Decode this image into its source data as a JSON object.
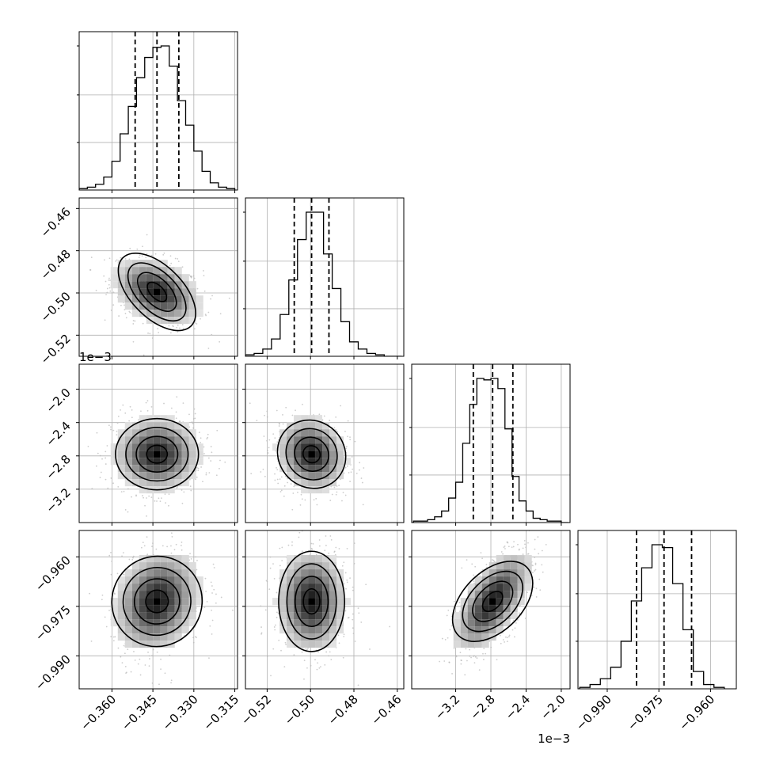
{
  "chart_data": {
    "type": "corner",
    "parameters": [
      {
        "range": [
          -0.372,
          -0.314
        ],
        "ticks": [
          -0.36,
          -0.345,
          -0.33,
          -0.315
        ],
        "tick_labels": [
          "−0.360",
          "−0.345",
          "−0.330",
          "−0.315"
        ],
        "offset_text": "",
        "quantiles": [
          -0.3515,
          -0.3435,
          -0.3355
        ],
        "hist_x": [
          -0.3705,
          -0.3675,
          -0.3645,
          -0.3615,
          -0.3585,
          -0.3555,
          -0.3525,
          -0.3495,
          -0.3465,
          -0.3435,
          -0.3405,
          -0.3375,
          -0.3345,
          -0.3315,
          -0.3285,
          -0.3255,
          -0.3225,
          -0.3195,
          -0.3165
        ],
        "hist_counts": [
          0.01,
          0.02,
          0.04,
          0.09,
          0.2,
          0.39,
          0.58,
          0.78,
          0.92,
          0.99,
          1.0,
          0.86,
          0.62,
          0.45,
          0.27,
          0.13,
          0.05,
          0.02,
          0.01
        ]
      },
      {
        "range": [
          -0.53,
          -0.457
        ],
        "ticks": [
          -0.52,
          -0.5,
          -0.48,
          -0.46
        ],
        "tick_labels": [
          "−0.52",
          "−0.50",
          "−0.48",
          "−0.46"
        ],
        "offset_text": "",
        "quantiles": [
          -0.5075,
          -0.4995,
          -0.4915
        ],
        "hist_x": [
          -0.528,
          -0.524,
          -0.52,
          -0.516,
          -0.512,
          -0.508,
          -0.504,
          -0.5,
          -0.496,
          -0.492,
          -0.488,
          -0.484,
          -0.48,
          -0.476,
          -0.472,
          -0.468,
          -0.464,
          -0.46
        ],
        "hist_counts": [
          0.01,
          0.02,
          0.05,
          0.12,
          0.29,
          0.53,
          0.81,
          1.0,
          1.0,
          0.71,
          0.47,
          0.24,
          0.1,
          0.05,
          0.02,
          0.01,
          0.0,
          0.0
        ]
      },
      {
        "range": [
          -3.7,
          -1.9
        ],
        "ticks": [
          -3.2,
          -2.8,
          -2.4,
          -2.0
        ],
        "tick_labels": [
          "−3.2",
          "−2.8",
          "−2.4",
          "−2.0"
        ],
        "offset_text": "1e−3",
        "quantiles": [
          -3.0,
          -2.78,
          -2.55
        ],
        "hist_x": [
          -3.64,
          -3.56,
          -3.48,
          -3.4,
          -3.32,
          -3.24,
          -3.16,
          -3.08,
          -3.0,
          -2.92,
          -2.84,
          -2.76,
          -2.68,
          -2.6,
          -2.52,
          -2.44,
          -2.36,
          -2.28,
          -2.2,
          -2.12,
          -2.04,
          -1.96
        ],
        "hist_counts": [
          0.01,
          0.01,
          0.02,
          0.04,
          0.08,
          0.17,
          0.28,
          0.55,
          0.82,
          1.0,
          0.99,
          1.0,
          0.93,
          0.65,
          0.32,
          0.15,
          0.08,
          0.03,
          0.02,
          0.01,
          0.01,
          0.0
        ],
        "hist_step_style": "wide"
      },
      {
        "range": [
          -0.9985,
          -0.9525
        ],
        "ticks": [
          -0.99,
          -0.975,
          -0.96
        ],
        "tick_labels": [
          "−0.990",
          "−0.975",
          "−0.960"
        ],
        "offset_text": "",
        "quantiles": [
          -0.9815,
          -0.9735,
          -0.9655
        ],
        "hist_x": [
          -0.9965,
          -0.9935,
          -0.9905,
          -0.9875,
          -0.9845,
          -0.9815,
          -0.9785,
          -0.9755,
          -0.9725,
          -0.9695,
          -0.9665,
          -0.9635,
          -0.9605,
          -0.9575
        ],
        "hist_counts": [
          0.01,
          0.03,
          0.07,
          0.15,
          0.33,
          0.61,
          0.84,
          1.0,
          0.98,
          0.73,
          0.41,
          0.12,
          0.03,
          0.01
        ]
      }
    ],
    "y_ranges": [
      null,
      [
        -0.53,
        -0.455
      ],
      [
        -3.6,
        -1.7
      ],
      [
        -1.0,
        -0.952
      ]
    ],
    "y_ticks": [
      [],
      {
        "values": [
          -0.52,
          -0.5,
          -0.48,
          -0.46
        ],
        "labels": [
          "−0.52",
          "−0.50",
          "−0.48",
          "−0.46"
        ]
      },
      {
        "values": [
          -3.2,
          -2.8,
          -2.4,
          -2.0
        ],
        "labels": [
          "−3.2",
          "−2.8",
          "−2.4",
          "−2.0"
        ]
      },
      {
        "values": [
          -0.99,
          -0.975,
          -0.96
        ],
        "labels": [
          "−0.990",
          "−0.975",
          "−0.960"
        ]
      }
    ],
    "y_offset_text": [
      null,
      null,
      "1e−3",
      null
    ],
    "pair_correlations": {
      "1-0": -0.35,
      "2-0": 0.0,
      "2-1": -0.15,
      "3-0": 0.2,
      "3-1": 0.0,
      "3-2": 0.65
    },
    "grid": true,
    "colors": {
      "line": "#000000",
      "scatter": "#b8b8b8",
      "grid": "#b0b0b0"
    }
  }
}
